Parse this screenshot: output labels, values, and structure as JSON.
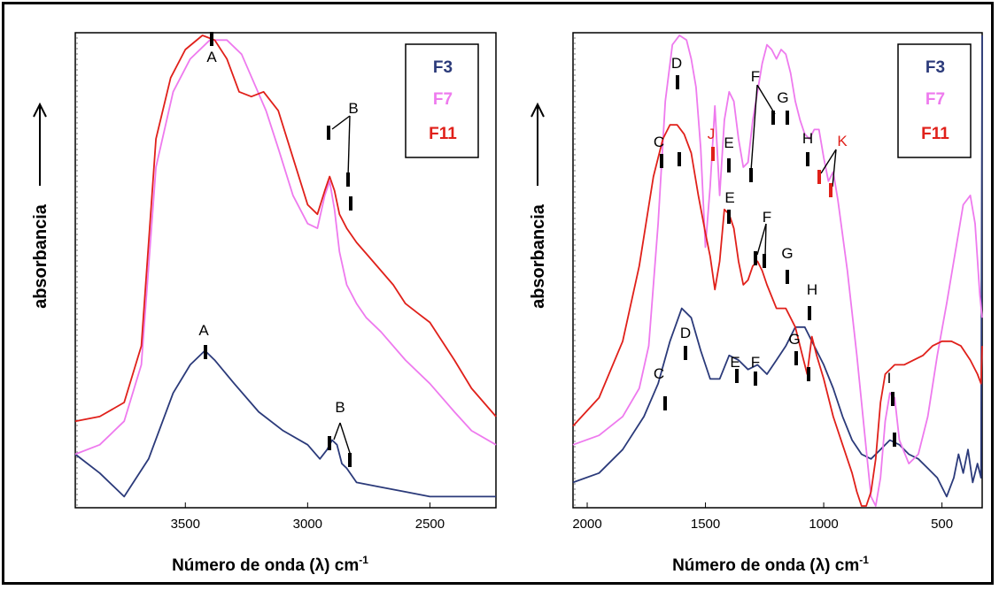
{
  "chart_data": [
    {
      "type": "line",
      "x_axis": {
        "label": "Número de onda (λ) cm",
        "label_sup": "-1",
        "reversed": true,
        "range": [
          3950,
          2230
        ],
        "ticks": [
          3500,
          3000,
          2500
        ]
      },
      "y_axis": {
        "label": "absorbancia",
        "arrow": "↑",
        "ticks_shown": false,
        "range": [
          0,
          1
        ]
      },
      "legend": {
        "position": "top-right",
        "entries": [
          {
            "name": "F3",
            "color": "#2b3a7a"
          },
          {
            "name": "F7",
            "color": "#ee7aee"
          },
          {
            "name": "F11",
            "color": "#e0201a"
          }
        ]
      },
      "series": [
        {
          "name": "F3",
          "color": "#2b3a7a",
          "x": [
            3950,
            3850,
            3750,
            3650,
            3550,
            3480,
            3420,
            3380,
            3300,
            3200,
            3100,
            3000,
            2950,
            2920,
            2900,
            2880,
            2860,
            2840,
            2800,
            2700,
            2600,
            2500,
            2400,
            2230
          ],
          "y": [
            0.11,
            0.07,
            0.02,
            0.1,
            0.24,
            0.3,
            0.33,
            0.31,
            0.26,
            0.2,
            0.16,
            0.13,
            0.1,
            0.12,
            0.14,
            0.13,
            0.09,
            0.08,
            0.05,
            0.04,
            0.03,
            0.02,
            0.02,
            0.02
          ]
        },
        {
          "name": "F7",
          "color": "#ee7aee",
          "x": [
            3950,
            3850,
            3750,
            3680,
            3620,
            3550,
            3480,
            3400,
            3330,
            3270,
            3220,
            3170,
            3120,
            3060,
            3000,
            2960,
            2930,
            2910,
            2890,
            2870,
            2840,
            2800,
            2760,
            2700,
            2600,
            2500,
            2400,
            2330,
            2230
          ],
          "y": [
            0.11,
            0.13,
            0.18,
            0.3,
            0.72,
            0.88,
            0.95,
            0.99,
            0.99,
            0.96,
            0.9,
            0.84,
            0.76,
            0.66,
            0.6,
            0.59,
            0.66,
            0.69,
            0.63,
            0.54,
            0.47,
            0.43,
            0.4,
            0.37,
            0.31,
            0.26,
            0.2,
            0.16,
            0.13
          ]
        },
        {
          "name": "F11",
          "color": "#e0201a",
          "x": [
            3950,
            3850,
            3750,
            3680,
            3620,
            3560,
            3500,
            3430,
            3380,
            3330,
            3280,
            3230,
            3180,
            3120,
            3060,
            3000,
            2960,
            2930,
            2910,
            2890,
            2870,
            2840,
            2800,
            2750,
            2700,
            2650,
            2600,
            2550,
            2500,
            2450,
            2400,
            2330,
            2230
          ],
          "y": [
            0.18,
            0.19,
            0.22,
            0.34,
            0.78,
            0.91,
            0.97,
            1.0,
            0.99,
            0.95,
            0.88,
            0.87,
            0.88,
            0.84,
            0.74,
            0.64,
            0.62,
            0.67,
            0.7,
            0.67,
            0.62,
            0.59,
            0.56,
            0.53,
            0.5,
            0.47,
            0.43,
            0.41,
            0.39,
            0.35,
            0.31,
            0.25,
            0.19
          ]
        }
      ],
      "annotations": [
        {
          "text": "A",
          "color": "#000"
        },
        {
          "text": "B",
          "color": "#000"
        },
        {
          "text": "A",
          "color": "#000"
        },
        {
          "text": "B",
          "color": "#000"
        }
      ]
    },
    {
      "type": "line",
      "x_axis": {
        "label": "Número de onda (λ) cm",
        "label_sup": "-1",
        "reversed": true,
        "range": [
          2060,
          330
        ],
        "ticks": [
          2000,
          1500,
          1000,
          500
        ]
      },
      "y_axis": {
        "label": "absorbancia",
        "arrow": "↑",
        "ticks_shown": false,
        "range": [
          0,
          1
        ]
      },
      "legend": {
        "position": "top-right",
        "entries": [
          {
            "name": "F3",
            "color": "#2b3a7a"
          },
          {
            "name": "F7",
            "color": "#ee7aee"
          },
          {
            "name": "F11",
            "color": "#e0201a"
          }
        ]
      },
      "series": [
        {
          "name": "F3",
          "color": "#2b3a7a",
          "x": [
            2060,
            1950,
            1850,
            1760,
            1700,
            1650,
            1600,
            1560,
            1520,
            1480,
            1440,
            1400,
            1360,
            1320,
            1280,
            1240,
            1200,
            1160,
            1120,
            1080,
            1040,
            1000,
            960,
            920,
            880,
            840,
            800,
            760,
            720,
            680,
            640,
            600,
            560,
            520,
            480,
            450,
            430,
            410,
            390,
            370,
            350,
            335,
            330
          ],
          "y": [
            0.05,
            0.07,
            0.12,
            0.19,
            0.26,
            0.35,
            0.42,
            0.4,
            0.33,
            0.27,
            0.27,
            0.32,
            0.31,
            0.29,
            0.3,
            0.28,
            0.31,
            0.34,
            0.38,
            0.38,
            0.34,
            0.3,
            0.25,
            0.19,
            0.14,
            0.11,
            0.1,
            0.12,
            0.14,
            0.13,
            0.11,
            0.1,
            0.08,
            0.06,
            0.02,
            0.06,
            0.11,
            0.07,
            0.12,
            0.05,
            0.09,
            0.06,
            1.0
          ]
        },
        {
          "name": "F7",
          "color": "#ee7aee",
          "x": [
            2060,
            1950,
            1850,
            1780,
            1740,
            1700,
            1670,
            1640,
            1610,
            1580,
            1560,
            1540,
            1520,
            1500,
            1480,
            1460,
            1440,
            1420,
            1400,
            1380,
            1360,
            1340,
            1320,
            1300,
            1280,
            1260,
            1240,
            1220,
            1200,
            1180,
            1160,
            1140,
            1120,
            1100,
            1080,
            1060,
            1040,
            1020,
            1000,
            980,
            960,
            940,
            900,
            860,
            820,
            800,
            780,
            760,
            740,
            720,
            700,
            680,
            640,
            600,
            560,
            520,
            480,
            440,
            410,
            380,
            360,
            340,
            330
          ],
          "y": [
            0.13,
            0.15,
            0.19,
            0.25,
            0.34,
            0.6,
            0.86,
            0.98,
            1.0,
            0.99,
            0.95,
            0.89,
            0.76,
            0.55,
            0.68,
            0.85,
            0.66,
            0.82,
            0.88,
            0.86,
            0.78,
            0.72,
            0.73,
            0.82,
            0.88,
            0.94,
            0.98,
            0.97,
            0.95,
            0.97,
            0.96,
            0.92,
            0.86,
            0.82,
            0.79,
            0.78,
            0.8,
            0.8,
            0.74,
            0.69,
            0.71,
            0.65,
            0.5,
            0.32,
            0.12,
            0.02,
            0.0,
            0.06,
            0.18,
            0.24,
            0.23,
            0.14,
            0.09,
            0.11,
            0.19,
            0.32,
            0.43,
            0.55,
            0.64,
            0.66,
            0.6,
            0.45,
            0.4
          ]
        },
        {
          "name": "F11",
          "color": "#e0201a",
          "x": [
            2060,
            1950,
            1850,
            1780,
            1720,
            1680,
            1650,
            1620,
            1590,
            1560,
            1530,
            1500,
            1480,
            1460,
            1440,
            1420,
            1400,
            1380,
            1360,
            1340,
            1320,
            1300,
            1280,
            1260,
            1240,
            1200,
            1160,
            1120,
            1090,
            1070,
            1050,
            1030,
            1000,
            960,
            920,
            880,
            860,
            840,
            820,
            800,
            780,
            760,
            740,
            700,
            660,
            620,
            580,
            540,
            500,
            460,
            420,
            380,
            350,
            335,
            330
          ],
          "y": [
            0.17,
            0.23,
            0.35,
            0.51,
            0.7,
            0.78,
            0.81,
            0.81,
            0.79,
            0.75,
            0.66,
            0.58,
            0.53,
            0.46,
            0.52,
            0.63,
            0.62,
            0.59,
            0.52,
            0.47,
            0.48,
            0.51,
            0.52,
            0.5,
            0.47,
            0.42,
            0.42,
            0.38,
            0.32,
            0.28,
            0.36,
            0.32,
            0.27,
            0.19,
            0.13,
            0.07,
            0.03,
            0.0,
            0.0,
            0.03,
            0.1,
            0.22,
            0.28,
            0.3,
            0.3,
            0.31,
            0.32,
            0.34,
            0.35,
            0.35,
            0.34,
            0.31,
            0.28,
            0.26,
            0.34
          ]
        }
      ],
      "annotations": [
        {
          "text": "D",
          "color": "#000"
        },
        {
          "text": "C",
          "color": "#000"
        },
        {
          "text": "J",
          "color": "#e0201a"
        },
        {
          "text": "E",
          "color": "#000"
        },
        {
          "text": "F",
          "color": "#000"
        },
        {
          "text": "G",
          "color": "#000"
        },
        {
          "text": "H",
          "color": "#000"
        },
        {
          "text": "K",
          "color": "#e0201a"
        },
        {
          "text": "E",
          "color": "#000"
        },
        {
          "text": "F",
          "color": "#000"
        },
        {
          "text": "G",
          "color": "#000"
        },
        {
          "text": "H",
          "color": "#000"
        },
        {
          "text": "D",
          "color": "#000"
        },
        {
          "text": "C",
          "color": "#000"
        },
        {
          "text": "E",
          "color": "#000"
        },
        {
          "text": "F",
          "color": "#000"
        },
        {
          "text": "G",
          "color": "#000"
        },
        {
          "text": "I",
          "color": "#000"
        }
      ]
    }
  ]
}
